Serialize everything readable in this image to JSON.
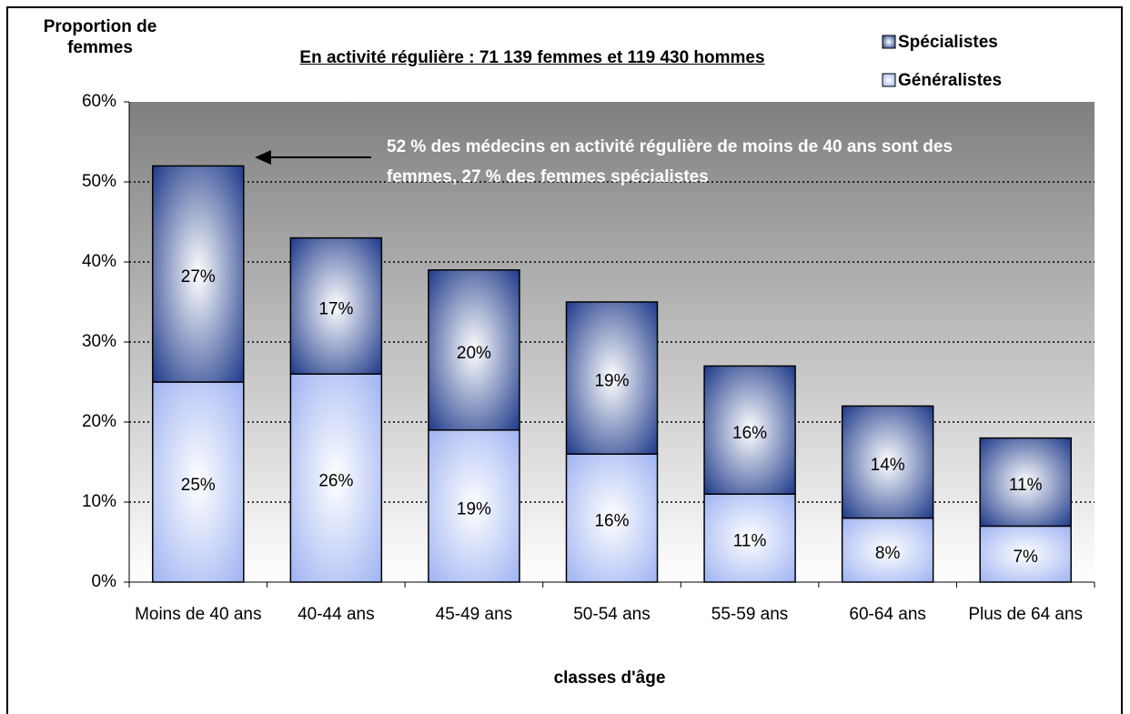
{
  "chart_data": {
    "type": "stacked-bar",
    "title": "En activité régulière : 71 139  femmes et 119 430 hommes",
    "y_label": "Proportion de femmes",
    "x_label": "classes d'âge",
    "annotation": "52 % des médecins en activité régulière de moins de 40 ans sont des femmes, 27 % des femmes spécialistes",
    "categories": [
      "Moins de 40 ans",
      "40-44 ans",
      "45-49 ans",
      "50-54 ans",
      "55-59 ans",
      "60-64 ans",
      "Plus de 64 ans"
    ],
    "series": [
      {
        "name": "Généralistes",
        "color": "#9fb3f2",
        "values": [
          25,
          26,
          19,
          16,
          11,
          8,
          7
        ],
        "value_labels": [
          "25%",
          "26%",
          "19%",
          "16%",
          "11%",
          "8%",
          "7%"
        ]
      },
      {
        "name": "Spécialistes",
        "color": "#1e3a8a",
        "values": [
          27,
          17,
          20,
          19,
          16,
          14,
          11
        ],
        "value_labels": [
          "27%",
          "17%",
          "20%",
          "19%",
          "16%",
          "14%",
          "11%"
        ]
      }
    ],
    "ylim": [
      0,
      60
    ],
    "yticks": [
      {
        "value": 0,
        "label": "0%"
      },
      {
        "value": 10,
        "label": "10%"
      },
      {
        "value": 20,
        "label": "20%"
      },
      {
        "value": 30,
        "label": "30%"
      },
      {
        "value": 40,
        "label": "40%"
      },
      {
        "value": 50,
        "label": "50%"
      },
      {
        "value": 60,
        "label": "60%"
      }
    ],
    "grid": true,
    "legend": "top-right"
  }
}
